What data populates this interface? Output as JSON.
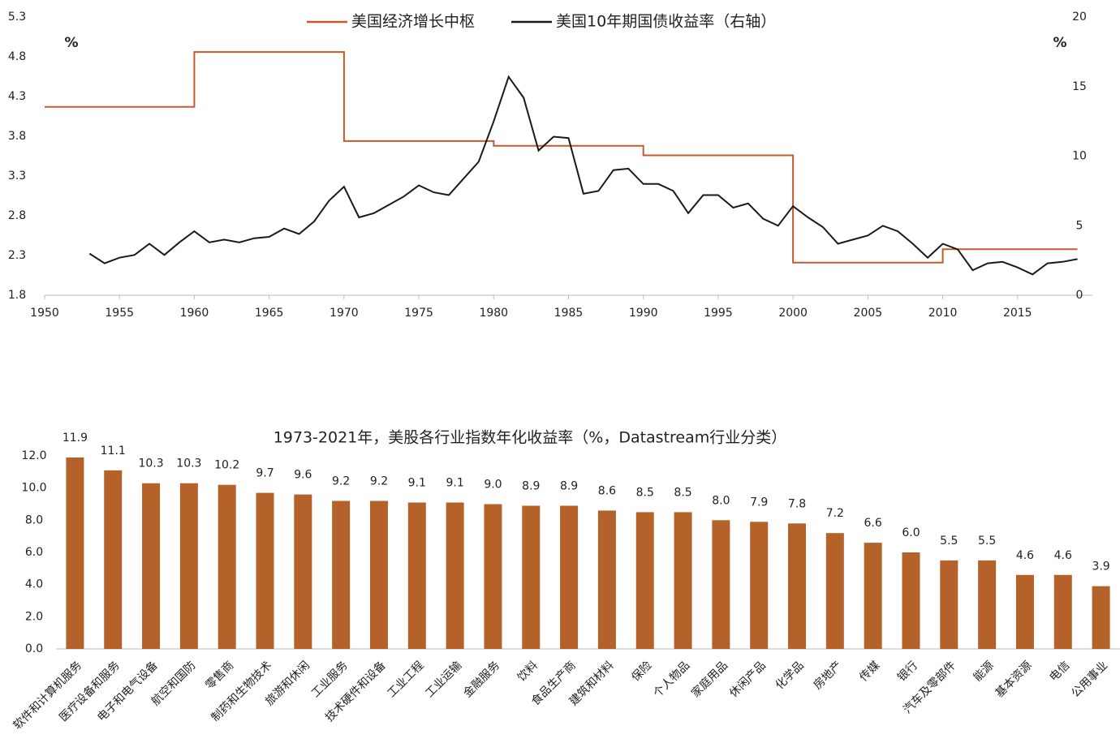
{
  "chart_data": [
    {
      "type": "line",
      "ylabel": "%",
      "y2label": "%",
      "xlim": [
        1950,
        2020
      ],
      "xticks": [
        1950,
        1955,
        1960,
        1965,
        1970,
        1975,
        1980,
        1985,
        1990,
        1995,
        2000,
        2005,
        2010,
        2015
      ],
      "ylim": [
        1.8,
        5.3
      ],
      "yticks": [
        1.8,
        2.3,
        2.8,
        3.3,
        3.8,
        4.3,
        4.8,
        5.3
      ],
      "y2lim": [
        0,
        20
      ],
      "y2ticks": [
        0,
        5,
        10,
        15,
        20
      ],
      "legend": "top",
      "series": [
        {
          "name": "美国经济增长中枢",
          "color": "#c85a2a",
          "axis": "y",
          "x": [
            1950,
            1960,
            1960,
            1970,
            1970,
            1980,
            1980,
            1990,
            1990,
            2000,
            2000,
            2010,
            2010,
            2019
          ],
          "values": [
            4.17,
            4.17,
            4.86,
            4.86,
            3.74,
            3.74,
            3.68,
            3.68,
            3.56,
            3.56,
            2.21,
            2.21,
            2.38,
            2.38
          ]
        },
        {
          "name": "美国10年期国债收益率（右轴）",
          "color": "#1a1a1a",
          "axis": "y2",
          "x": [
            1953,
            1954,
            1955,
            1956,
            1957,
            1958,
            1959,
            1960,
            1961,
            1962,
            1963,
            1964,
            1965,
            1966,
            1967,
            1968,
            1969,
            1970,
            1971,
            1972,
            1973,
            1974,
            1975,
            1976,
            1977,
            1978,
            1979,
            1980,
            1981,
            1982,
            1983,
            1984,
            1985,
            1986,
            1987,
            1988,
            1989,
            1990,
            1991,
            1992,
            1993,
            1994,
            1995,
            1996,
            1997,
            1998,
            1999,
            2000,
            2001,
            2002,
            2003,
            2004,
            2005,
            2006,
            2007,
            2008,
            2009,
            2010,
            2011,
            2012,
            2013,
            2014,
            2015,
            2016,
            2017,
            2018,
            2019
          ],
          "values": [
            3.0,
            2.3,
            2.7,
            2.9,
            3.7,
            2.9,
            3.8,
            4.6,
            3.8,
            4.0,
            3.8,
            4.1,
            4.2,
            4.8,
            4.4,
            5.3,
            6.8,
            7.8,
            5.6,
            5.9,
            6.5,
            7.1,
            7.9,
            7.4,
            7.2,
            8.4,
            9.6,
            12.5,
            15.7,
            14.2,
            10.4,
            11.4,
            11.3,
            7.3,
            7.5,
            9.0,
            9.1,
            8.0,
            8.0,
            7.5,
            5.9,
            7.2,
            7.2,
            6.3,
            6.6,
            5.5,
            5.0,
            6.4,
            5.6,
            4.9,
            3.7,
            4.0,
            4.3,
            5.0,
            4.6,
            3.7,
            2.7,
            3.7,
            3.3,
            1.8,
            2.3,
            2.4,
            2.0,
            1.5,
            2.3,
            2.4,
            2.6
          ]
        }
      ]
    },
    {
      "type": "bar",
      "title": "1973-2021年，美股各行业指数年化收益率（%，Datastream行业分类）",
      "color": "#b5612a",
      "ylim": [
        0,
        12
      ],
      "yticks": [
        {
          "value": 0,
          "label": "0.0"
        },
        {
          "value": 2,
          "label": "2.0"
        },
        {
          "value": 4,
          "label": "4.0"
        },
        {
          "value": 6,
          "label": "6.0"
        },
        {
          "value": 8,
          "label": "8.0"
        },
        {
          "value": 10,
          "label": "10.0"
        },
        {
          "value": 12,
          "label": "12.0"
        }
      ],
      "categories": [
        "软件和计算机服务",
        "医疗设备和服务",
        "电子和电气设备",
        "航空和国防",
        "零售商",
        "制药和生物技术",
        "旅游和休闲",
        "工业服务",
        "技术硬件和设备",
        "工业工程",
        "工业运输",
        "金融服务",
        "饮料",
        "食品生产商",
        "建筑和材料",
        "保险",
        "个人物品",
        "家庭用品",
        "休闲产品",
        "化学品",
        "房地产",
        "传媒",
        "银行",
        "汽车及零部件",
        "能源",
        "基本资源",
        "电信",
        "公用事业"
      ],
      "values": [
        11.9,
        11.1,
        10.3,
        10.3,
        10.2,
        9.7,
        9.6,
        9.2,
        9.2,
        9.1,
        9.1,
        9.0,
        8.9,
        8.9,
        8.6,
        8.5,
        8.5,
        8.0,
        7.9,
        7.8,
        7.2,
        6.6,
        6.0,
        5.5,
        5.5,
        4.6,
        4.6,
        3.9
      ],
      "value_labels": [
        "11.9",
        "11.1",
        "10.3",
        "10.3",
        "10.2",
        "9.7",
        "9.6",
        "9.2",
        "9.2",
        "9.1",
        "9.1",
        "9.0",
        "8.9",
        "8.9",
        "8.6",
        "8.5",
        "8.5",
        "8.0",
        "7.9",
        "7.8",
        "7.2",
        "6.6",
        "6.0",
        "5.5",
        "5.5",
        "4.6",
        "4.6",
        "3.9"
      ]
    }
  ]
}
